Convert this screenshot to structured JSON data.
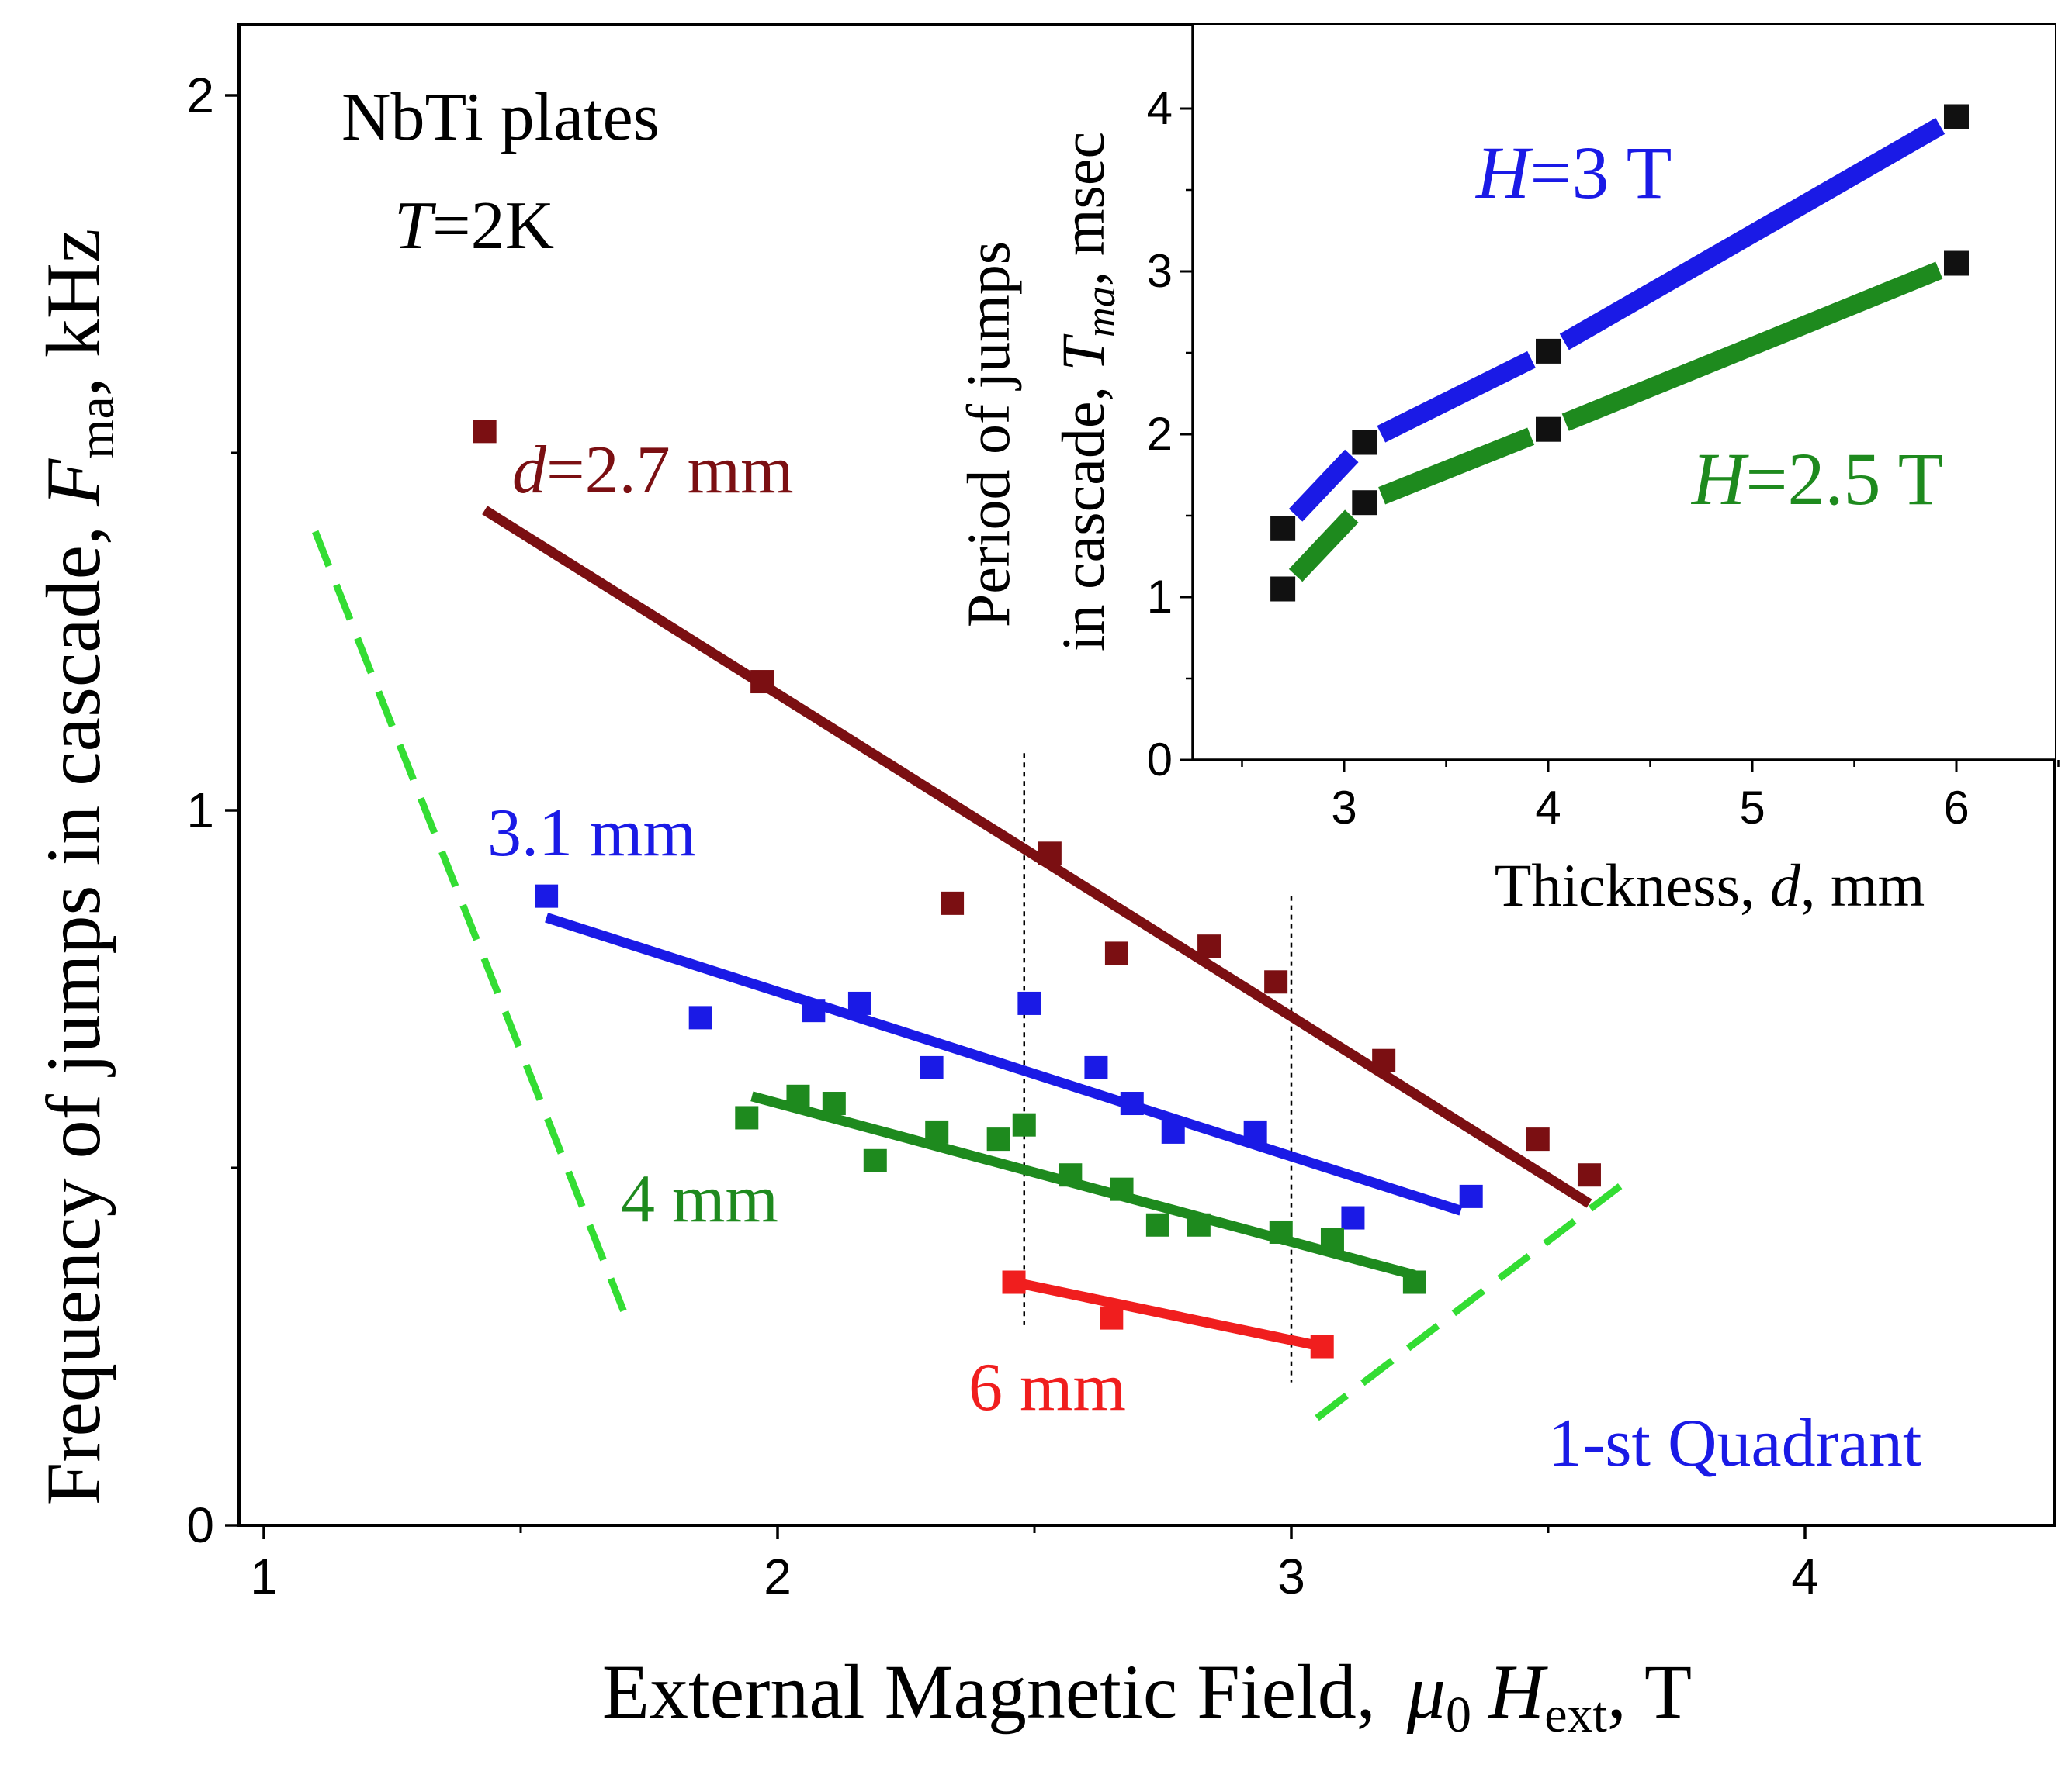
{
  "colors": {
    "d27": "#7b0f12",
    "d31": "#1a1ae6",
    "d4": "#1e8a1e",
    "d6": "#f01e1e",
    "bounds": "#33dd33",
    "H3": "#1a1ae6",
    "H25": "#1e8a1e",
    "marker_inset": "#111111",
    "quadrant": "#1a1ae6"
  },
  "chart_data": [
    {
      "type": "scatter",
      "title": "",
      "annotation_sample": "NbTi plates",
      "annotation_temp": "T=2K",
      "annotation_temp_symbol": "T",
      "annotation_temp_value": "=2K",
      "annotation_quadrant": "1-st Quadrant",
      "xlabel": "External Magnetic Field,  μ0 Hext, T",
      "xlabel_parts": {
        "prefix": "External Magnetic Field,",
        "mu": "μ",
        "mu_sub": "0",
        "H": "H",
        "H_sub": "ext",
        "unit": ", T"
      },
      "ylabel": "Frequency of jumps in cascade, Fma, kHz",
      "ylabel_parts": {
        "prefix": "Frequency of jumps in cascade, ",
        "F": "F",
        "F_sub": "ma",
        "unit": ", kHz"
      },
      "xlim": [
        0.98,
        4.5
      ],
      "ylim": [
        0,
        2.1
      ],
      "xticks": [
        1,
        2,
        3,
        4
      ],
      "xtick_labels": [
        "1",
        "2",
        "3",
        "4"
      ],
      "yticks": [
        0,
        1,
        2
      ],
      "ytick_labels": [
        "0",
        "1",
        "2"
      ],
      "series": [
        {
          "name": "d=2.7 mm",
          "label_symbol": "d",
          "label_value": "=2.7 mm",
          "color_key": "d27",
          "points": [
            [
              1.43,
              1.53
            ],
            [
              1.97,
              1.18
            ],
            [
              2.34,
              0.87
            ],
            [
              2.53,
              0.94
            ],
            [
              2.66,
              0.8
            ],
            [
              2.84,
              0.81
            ],
            [
              2.97,
              0.76
            ],
            [
              3.18,
              0.65
            ],
            [
              3.48,
              0.54
            ],
            [
              3.58,
              0.49
            ]
          ],
          "fit": [
            [
              1.43,
              1.42
            ],
            [
              3.58,
              0.45
            ]
          ]
        },
        {
          "name": "3.1 mm",
          "color_key": "d31",
          "points": [
            [
              1.55,
              0.88
            ],
            [
              1.85,
              0.71
            ],
            [
              2.07,
              0.72
            ],
            [
              2.16,
              0.73
            ],
            [
              2.3,
              0.64
            ],
            [
              2.49,
              0.73
            ],
            [
              2.62,
              0.64
            ],
            [
              2.69,
              0.59
            ],
            [
              2.77,
              0.55
            ],
            [
              2.93,
              0.55
            ],
            [
              3.12,
              0.43
            ],
            [
              3.35,
              0.46
            ]
          ],
          "fit": [
            [
              1.55,
              0.85
            ],
            [
              3.33,
              0.44
            ]
          ]
        },
        {
          "name": "4 mm",
          "color_key": "d4",
          "points": [
            [
              1.94,
              0.57
            ],
            [
              2.04,
              0.6
            ],
            [
              2.11,
              0.59
            ],
            [
              2.19,
              0.51
            ],
            [
              2.31,
              0.55
            ],
            [
              2.43,
              0.54
            ],
            [
              2.48,
              0.56
            ],
            [
              2.57,
              0.49
            ],
            [
              2.67,
              0.47
            ],
            [
              2.74,
              0.42
            ],
            [
              2.82,
              0.42
            ],
            [
              2.98,
              0.41
            ],
            [
              3.08,
              0.4
            ],
            [
              3.24,
              0.34
            ]
          ],
          "fit": [
            [
              1.95,
              0.6
            ],
            [
              3.24,
              0.35
            ]
          ]
        },
        {
          "name": "6 mm",
          "color_key": "d6",
          "points": [
            [
              2.46,
              0.34
            ],
            [
              2.65,
              0.29
            ],
            [
              3.06,
              0.25
            ]
          ],
          "fit": [
            [
              2.46,
              0.34
            ],
            [
              3.06,
              0.25
            ]
          ]
        }
      ],
      "guide_lines": [
        {
          "name": "left boundary",
          "style": "dashed",
          "color_key": "bounds",
          "from": [
            1.1,
            1.39
          ],
          "to": [
            1.7,
            0.3
          ]
        },
        {
          "name": "right boundary",
          "style": "dashed",
          "color_key": "bounds",
          "from": [
            3.05,
            0.15
          ],
          "to": [
            3.65,
            0.48
          ]
        },
        {
          "name": "marker 2.5 T",
          "style": "dotted",
          "color": "#000000",
          "from": [
            2.48,
            1.08
          ],
          "to": [
            2.48,
            0.28
          ]
        },
        {
          "name": "marker 3 T",
          "style": "dotted",
          "color": "#000000",
          "from": [
            3.0,
            0.88
          ],
          "to": [
            3.0,
            0.2
          ]
        }
      ]
    },
    {
      "type": "line",
      "title": "inset",
      "xlabel": "Thickness, d, mm",
      "xlabel_parts": {
        "prefix": "Thickness, ",
        "d": "d",
        "unit": ", mm"
      },
      "ylabel_line1": "Period of jumps",
      "ylabel_line2": "in cascade, Tma, msec",
      "ylabel_line2_parts": {
        "prefix": "in cascade, ",
        "T": "T",
        "T_sub": "ma",
        "unit": ", msec"
      },
      "xlim": [
        2.25,
        6.5
      ],
      "ylim": [
        0,
        4.45
      ],
      "xticks": [
        3,
        4,
        5,
        6
      ],
      "xtick_labels": [
        "3",
        "4",
        "5",
        "6"
      ],
      "yticks": [
        0,
        1,
        2,
        3,
        4
      ],
      "ytick_labels": [
        "0",
        "1",
        "2",
        "3",
        "4"
      ],
      "x": [
        2.7,
        3.1,
        4.0,
        6.0
      ],
      "series": [
        {
          "name": "H=3 T",
          "label_symbol": "H",
          "label_value": "=3 T",
          "color_key": "H3",
          "values": [
            1.42,
            1.95,
            2.51,
            3.95
          ]
        },
        {
          "name": "H=2.5 T",
          "label_symbol": "H",
          "label_value": "=2.5 T",
          "color_key": "H25",
          "values": [
            1.05,
            1.58,
            2.03,
            3.05
          ]
        }
      ]
    }
  ]
}
